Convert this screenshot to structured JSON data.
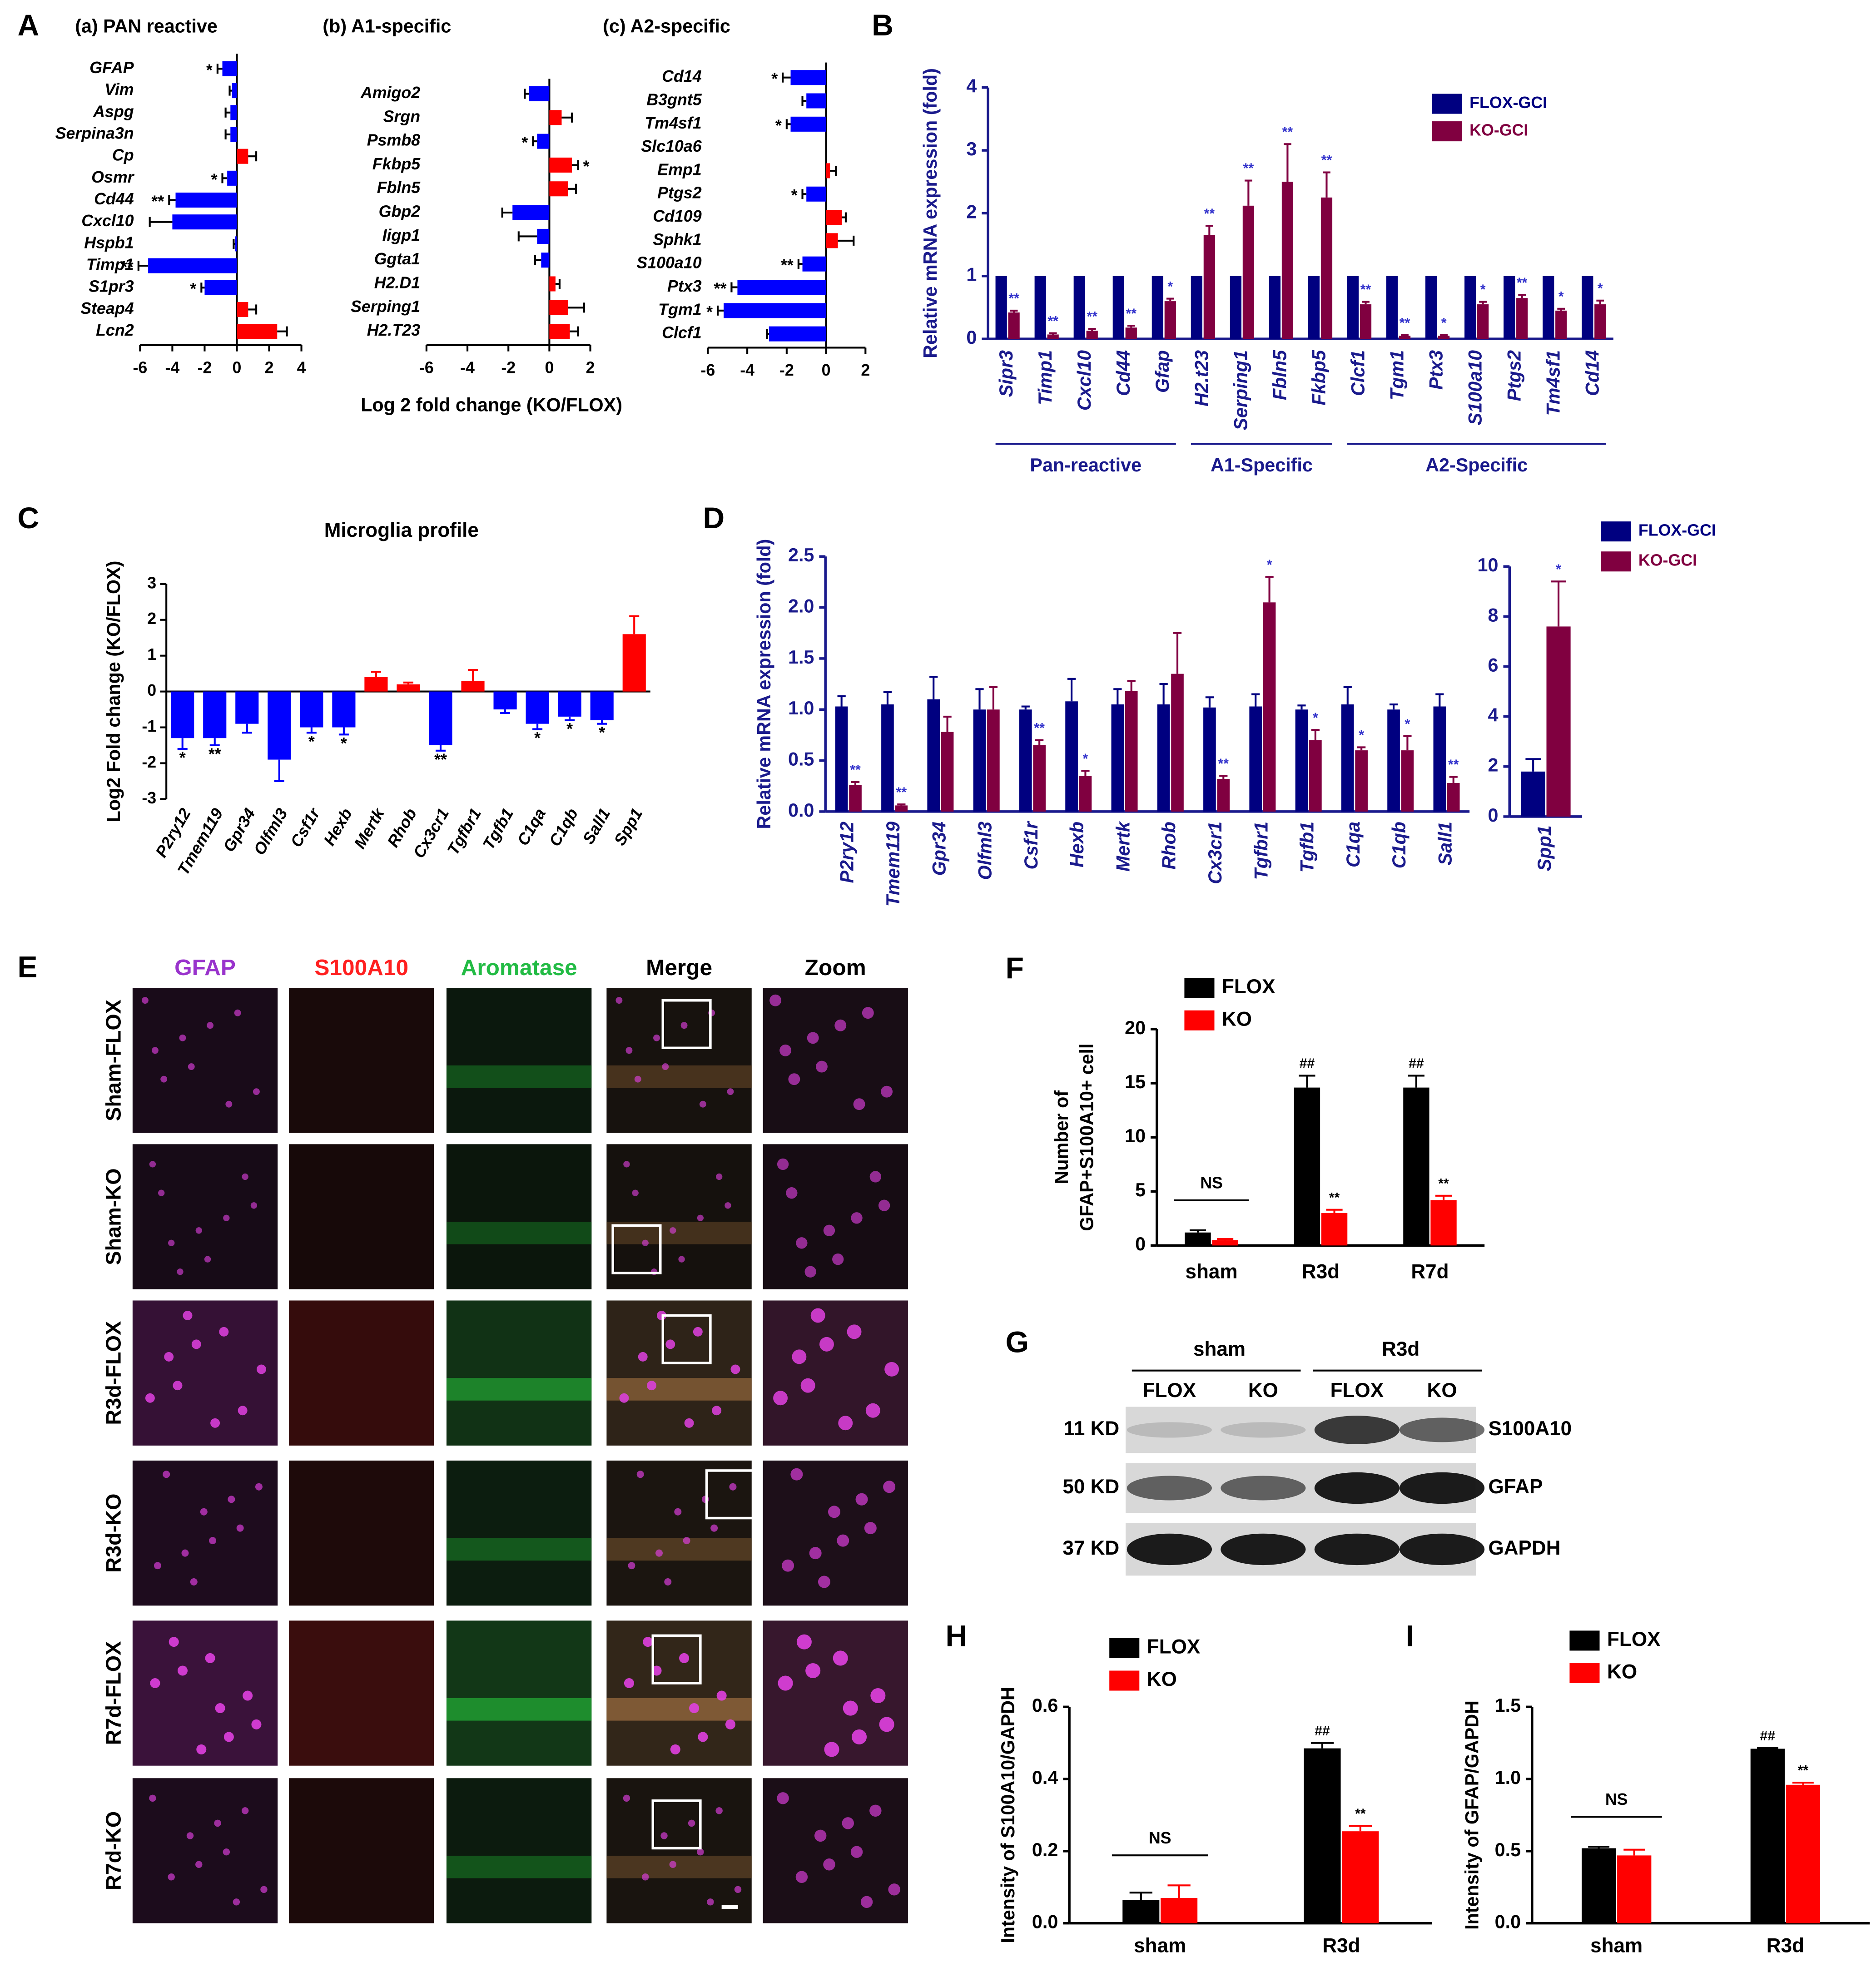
{
  "chart_data": [
    {
      "type": "hbar",
      "panel": "A",
      "title": "(a) PAN reactive",
      "categories": [
        "GFAP",
        "Vim",
        "Aspg",
        "Serpina3n",
        "Cp",
        "Osmr",
        "Cd44",
        "Cxcl10",
        "Hspb1",
        "Timp1",
        "S1pr3",
        "Steap4",
        "Lcn2"
      ],
      "values": [
        -0.9,
        -0.3,
        -0.4,
        -0.4,
        0.7,
        -0.6,
        -3.8,
        -4.0,
        -0.1,
        -5.5,
        -2.0,
        0.7,
        2.5
      ],
      "errors": [
        0.3,
        0.15,
        0.3,
        0.3,
        0.5,
        0.3,
        0.4,
        1.4,
        0.1,
        0.6,
        0.2,
        0.5,
        0.6
      ],
      "labels": [
        "*",
        null,
        null,
        null,
        null,
        "*",
        "**",
        null,
        null,
        "**",
        "*",
        null,
        null
      ],
      "xlim": [
        -6,
        4
      ],
      "xticks": [
        -6,
        -4,
        -2,
        0,
        2,
        4
      ],
      "color_positive": "#ff0000",
      "color_negative": "#0000ff"
    },
    {
      "type": "hbar",
      "title": "(b) A1-specific",
      "x_label": "Log 2 fold change (KO/FLOX)",
      "categories": [
        "Amigo2",
        "Srgn",
        "Psmb8",
        "Fkbp5",
        "Fbln5",
        "Gbp2",
        "Iigp1",
        "Ggta1",
        "H2.D1",
        "Serping1",
        "H2.T23"
      ],
      "values": [
        -1.0,
        0.6,
        -0.6,
        1.1,
        0.9,
        -1.8,
        -0.6,
        -0.4,
        0.3,
        0.9,
        1.0
      ],
      "errors": [
        0.2,
        0.5,
        0.2,
        0.3,
        0.4,
        0.5,
        0.9,
        0.3,
        0.2,
        0.8,
        0.4
      ],
      "labels": [
        null,
        null,
        "*",
        "*",
        null,
        null,
        null,
        null,
        null,
        null,
        null
      ],
      "xlim": [
        -6,
        2
      ],
      "xticks": [
        -6,
        -4,
        -2,
        0,
        2
      ],
      "color_positive": "#ff0000",
      "color_negative": "#0000ff"
    },
    {
      "type": "hbar",
      "title": "(c) A2-specific",
      "categories": [
        "Cd14",
        "B3gnt5",
        "Tm4sf1",
        "Slc10a6",
        "Emp1",
        "Ptgs2",
        "Cd109",
        "Sphk1",
        "S100a10",
        "Ptx3",
        "Tgm1",
        "Clcf1"
      ],
      "values": [
        -1.8,
        -1.0,
        -1.8,
        0,
        0.2,
        -1.0,
        0.8,
        0.6,
        -1.2,
        -4.5,
        -5.2,
        -2.9
      ],
      "errors": [
        0.4,
        0.2,
        0.2,
        0,
        0.3,
        0.2,
        0.2,
        0.8,
        0.2,
        0.3,
        0.3,
        0.1
      ],
      "labels": [
        "*",
        null,
        "*",
        null,
        null,
        "*",
        null,
        null,
        "**",
        "**",
        "*",
        null
      ],
      "xlim": [
        -6,
        2
      ],
      "xticks": [
        -6,
        -4,
        -2,
        0,
        2
      ],
      "color_positive": "#ff0000",
      "color_negative": "#0000ff"
    },
    {
      "type": "grouped_bar",
      "panel": "B",
      "y_label": "Relative mRNA expression (fold)",
      "text_color": "#1a1a8c",
      "categories": [
        "Sipr3",
        "Timp1",
        "Cxcl10",
        "Cd44",
        "Gfap",
        "H2.t23",
        "Serping1",
        "Fbln5",
        "Fkbp5",
        "Clcf1",
        "Tgm1",
        "Ptx3",
        "S100a10",
        "Ptgs2",
        "Tm4sf1",
        "Cd14"
      ],
      "series": [
        {
          "name": "FLOX-GCI",
          "color": "#000080",
          "values": [
            1,
            1,
            1,
            1,
            1,
            1,
            1,
            1,
            1,
            1,
            1,
            1,
            1,
            1,
            1,
            1
          ]
        },
        {
          "name": "KO-GCI",
          "color": "#800040",
          "values": [
            0.42,
            0.07,
            0.13,
            0.18,
            0.6,
            1.65,
            2.12,
            2.5,
            2.25,
            0.55,
            0.05,
            0.05,
            0.55,
            0.65,
            0.45,
            0.55
          ],
          "errors": [
            0.03,
            0.02,
            0.03,
            0.03,
            0.04,
            0.15,
            0.4,
            0.6,
            0.4,
            0.04,
            0.01,
            0.01,
            0.04,
            0.05,
            0.03,
            0.06
          ],
          "labels": [
            "**",
            "**",
            "**",
            "**",
            "*",
            "**",
            "**",
            "**",
            "**",
            "**",
            "**",
            "*",
            "*",
            "**",
            "*",
            "*"
          ]
        }
      ],
      "groups": [
        {
          "name": "Pan-reactive",
          "from": 0,
          "to": 4
        },
        {
          "name": "A1-Specific",
          "from": 5,
          "to": 8
        },
        {
          "name": "A2-Specific",
          "from": 9,
          "to": 15
        }
      ],
      "ylim": [
        0,
        4
      ],
      "yticks": [
        0,
        1,
        2,
        3,
        4
      ]
    },
    {
      "type": "signed_bar",
      "panel": "C",
      "title": "Microglia profile",
      "y_label": "Log2 Fold change (KO/FLOX)",
      "categories": [
        "P2ry12",
        "Tmem119",
        "Gpr34",
        "Olfml3",
        "Csf1r",
        "Hexb",
        "Mertk",
        "Rhob",
        "Cx3cr1",
        "Tgfbr1",
        "Tgfb1",
        "C1qa",
        "C1qb",
        "Sall1",
        "Spp1"
      ],
      "values": [
        -1.3,
        -1.3,
        -0.9,
        -1.9,
        -1.0,
        -1.0,
        0.4,
        0.2,
        -1.5,
        0.3,
        -0.5,
        -0.9,
        -0.7,
        -0.8,
        1.6
      ],
      "errors": [
        0.3,
        0.2,
        0.25,
        0.6,
        0.15,
        0.2,
        0.15,
        0.05,
        0.15,
        0.3,
        0.1,
        0.15,
        0.1,
        0.1,
        0.5
      ],
      "labels": [
        "*",
        "**",
        null,
        null,
        "*",
        "*",
        null,
        null,
        "**",
        null,
        null,
        "*",
        "*",
        "*",
        null
      ],
      "ylim": [
        -3,
        3
      ],
      "yticks": [
        -3,
        -2,
        -1,
        0,
        1,
        2,
        3
      ],
      "color_positive": "#ff0000",
      "color_negative": "#0000ff"
    },
    {
      "type": "grouped_bar",
      "panel": "D",
      "y_label": "Relative mRNA expression  (fold)",
      "text_color": "#1a1a8c",
      "categories": [
        "P2ry12",
        "Tmem119",
        "Gpr34",
        "Olfml3",
        "Csf1r",
        "Hexb",
        "Mertk",
        "Rhob",
        "Cx3cr1",
        "Tgfbr1",
        "Tgfb1",
        "C1qa",
        "C1qb",
        "Sall1"
      ],
      "series": [
        {
          "name": "FLOX-GCI",
          "color": "#000080",
          "values": [
            1.03,
            1.05,
            1.1,
            1.0,
            1.0,
            1.08,
            1.05,
            1.05,
            1.02,
            1.03,
            1.0,
            1.05,
            1.0,
            1.03
          ],
          "errors": [
            0.1,
            0.12,
            0.22,
            0.2,
            0.03,
            0.22,
            0.15,
            0.2,
            0.1,
            0.12,
            0.04,
            0.17,
            0.05,
            0.12
          ]
        },
        {
          "name": "KO-GCI",
          "color": "#800040",
          "values": [
            0.26,
            0.06,
            0.78,
            1.0,
            0.65,
            0.35,
            1.18,
            1.35,
            0.32,
            2.05,
            0.7,
            0.6,
            0.6,
            0.28
          ],
          "errors": [
            0.03,
            0.01,
            0.15,
            0.22,
            0.05,
            0.05,
            0.1,
            0.4,
            0.03,
            0.25,
            0.1,
            0.03,
            0.14,
            0.06
          ],
          "labels": [
            "**",
            "**",
            null,
            null,
            "**",
            "*",
            null,
            null,
            "**",
            "*",
            "*",
            "*",
            "*",
            "**"
          ]
        }
      ],
      "ylim": [
        0,
        2.5
      ],
      "yticks": [
        {
          "value": 0,
          "label": "0.0"
        },
        0.5,
        {
          "value": 1,
          "label": "1.0"
        },
        1.5,
        {
          "value": 2,
          "label": "2.0"
        },
        2.5
      ]
    },
    {
      "type": "grouped_bar",
      "text_color": "#1a1a8c",
      "categories": [
        "Spp1"
      ],
      "series": [
        {
          "color": "#000080",
          "values": [
            1.8
          ],
          "errors": [
            0.5
          ]
        },
        {
          "color": "#800040",
          "values": [
            7.6
          ],
          "errors": [
            1.8
          ],
          "labels": [
            "*"
          ]
        }
      ],
      "ylim": [
        0,
        10
      ],
      "yticks": [
        0,
        2,
        4,
        6,
        8,
        10
      ]
    },
    {
      "type": "grouped_bar",
      "panel": "F",
      "y_label": [
        "Number of",
        "GFAP+S100A10+ cell"
      ],
      "categories": [
        "sham",
        "R3d",
        "R7d"
      ],
      "series": [
        {
          "name": "FLOX",
          "color": "#000000",
          "values": [
            1.2,
            14.6,
            14.6
          ],
          "errors": [
            0.2,
            1.1,
            1.1
          ],
          "labels": [
            null,
            "##",
            "##"
          ]
        },
        {
          "name": "KO",
          "color": "#ff0000",
          "values": [
            0.5,
            3.0,
            4.2
          ],
          "errors": [
            0.1,
            0.3,
            0.4
          ],
          "labels": [
            null,
            "**",
            "**"
          ]
        }
      ],
      "group_labels": [
        "NS",
        null,
        null
      ],
      "ylim": [
        0,
        20
      ],
      "yticks": [
        0,
        5,
        10,
        15,
        20
      ]
    },
    {
      "type": "grouped_bar",
      "panel": "H",
      "y_label": "Intensity of S100A10/GAPDH",
      "categories": [
        "sham",
        "R3d"
      ],
      "series": [
        {
          "name": "FLOX",
          "color": "#000000",
          "values": [
            0.065,
            0.485
          ],
          "errors": [
            0.02,
            0.015
          ],
          "labels": [
            null,
            "##"
          ]
        },
        {
          "name": "KO",
          "color": "#ff0000",
          "values": [
            0.07,
            0.255
          ],
          "errors": [
            0.035,
            0.015
          ],
          "labels": [
            null,
            "**"
          ]
        }
      ],
      "group_labels": [
        "NS",
        null
      ],
      "ylim": [
        0,
        0.6
      ],
      "yticks": [
        {
          "value": 0,
          "label": "0.0"
        },
        0.2,
        0.4,
        0.6
      ]
    },
    {
      "type": "grouped_bar",
      "panel": "I",
      "y_label": "Intensity of  GFAP/GAPDH",
      "categories": [
        "sham",
        "R3d"
      ],
      "series": [
        {
          "name": "FLOX",
          "color": "#000000",
          "values": [
            0.52,
            1.21
          ],
          "errors": [
            0.01,
            0.005
          ],
          "labels": [
            null,
            "##"
          ]
        },
        {
          "name": "KO",
          "color": "#ff0000",
          "values": [
            0.47,
            0.96
          ],
          "errors": [
            0.04,
            0.015
          ],
          "labels": [
            null,
            "**"
          ]
        }
      ],
      "group_labels": [
        "NS",
        null
      ],
      "ylim": [
        0,
        1.5
      ],
      "yticks": [
        {
          "value": 0,
          "label": "0.0"
        },
        0.5,
        {
          "value": 1,
          "label": "1.0"
        },
        1.5
      ]
    }
  ],
  "panel_e": {
    "panel": "E",
    "columns": [
      "GFAP",
      "S100A10",
      "Aromatase",
      "Merge",
      "Zoom"
    ],
    "column_colors": [
      "#9933cc",
      "#ff2020",
      "#22bb44",
      "#000000",
      "#000000"
    ],
    "rows": [
      "Sham-FLOX",
      "Sham-KO",
      "R3d-FLOX",
      "R3d-KO",
      "R7d-FLOX",
      "R7d-KO"
    ]
  },
  "panel_g": {
    "panel": "G",
    "groups": [
      "sham",
      "R3d"
    ],
    "lanes": [
      "FLOX",
      "KO",
      "FLOX",
      "KO"
    ],
    "sizes": [
      "11 KD",
      "50 KD",
      "37 KD"
    ],
    "proteins": [
      "S100A10",
      "GFAP",
      "GAPDH"
    ]
  }
}
